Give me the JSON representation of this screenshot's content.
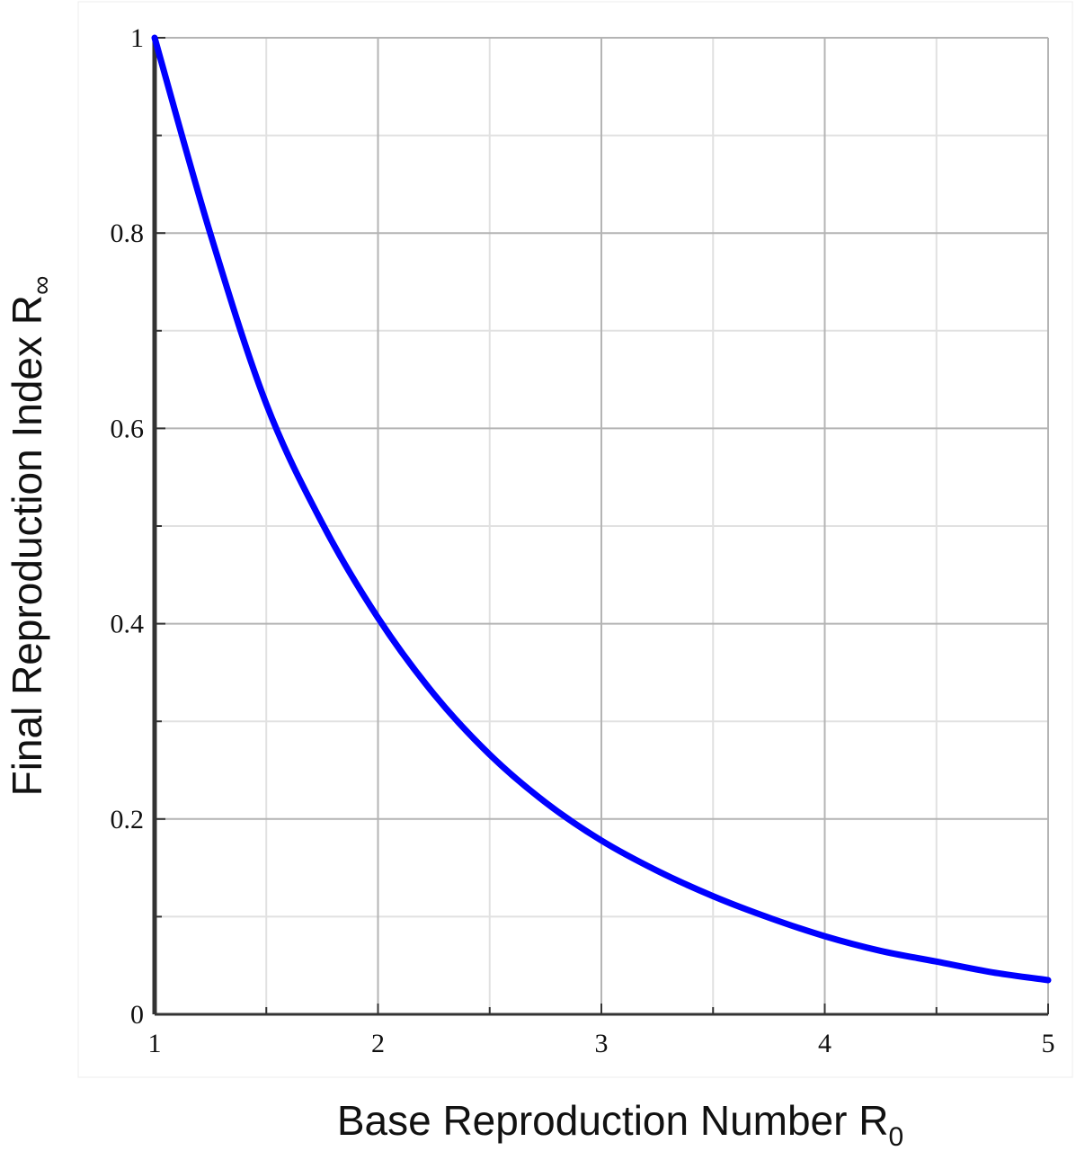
{
  "chart_data": {
    "type": "line",
    "title": "",
    "xlabel": {
      "text": "Base Reproduction Number R",
      "subscript": "0"
    },
    "ylabel": {
      "text": "Final Reproduction Index  R",
      "subscript": "∞"
    },
    "xlim": [
      1,
      5
    ],
    "ylim": [
      0,
      1
    ],
    "x_ticks": [
      "1",
      "2",
      "3",
      "4",
      "5"
    ],
    "y_ticks": [
      "0",
      "0.2",
      "0.4",
      "0.6",
      "0.8",
      "1"
    ],
    "x_minor_step": 0.5,
    "y_minor_step": 0.1,
    "grid": true,
    "legend": "none",
    "series": [
      {
        "color": "#0000ff",
        "x": [
          1.0,
          1.25,
          1.5,
          1.75,
          2.0,
          2.25,
          2.5,
          2.75,
          3.0,
          3.25,
          3.5,
          3.75,
          4.0,
          4.25,
          4.5,
          4.75,
          5.0
        ],
        "y": [
          1.0,
          0.799,
          0.625,
          0.503,
          0.406,
          0.328,
          0.266,
          0.217,
          0.178,
          0.147,
          0.121,
          0.099,
          0.08,
          0.065,
          0.054,
          0.043,
          0.035
        ]
      }
    ]
  },
  "colors": {
    "grid_major": "#b4b4b4",
    "grid_minor": "#e1e1e1",
    "axis": "#333333"
  }
}
